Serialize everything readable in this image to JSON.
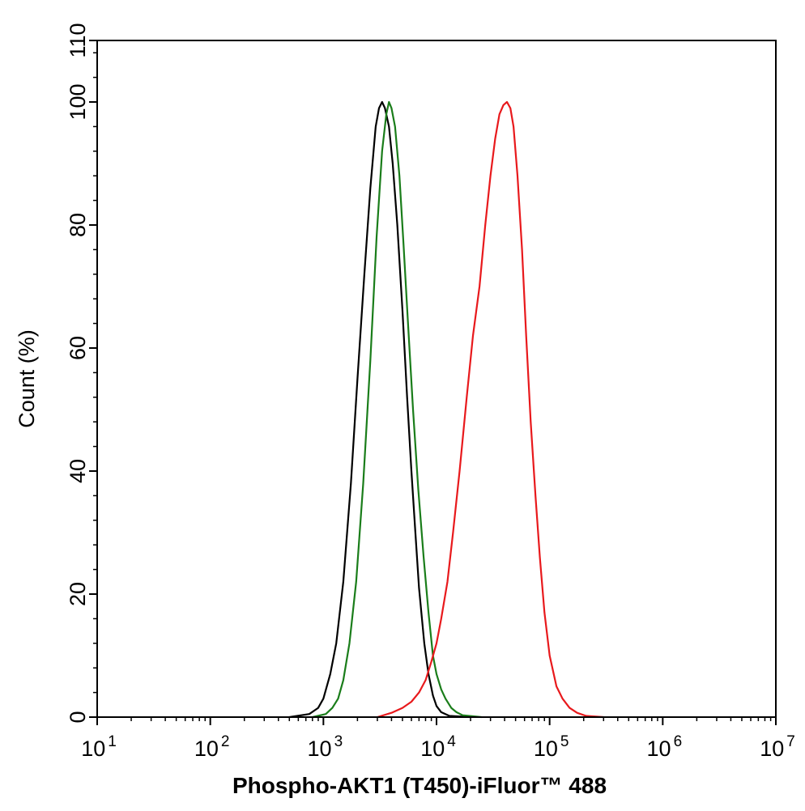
{
  "chart_data": {
    "type": "line",
    "title": "",
    "xlabel": "Phospho-AKT1 (T450)-iFluor™ 488",
    "ylabel": "Count  (%)",
    "x_scale": "log",
    "xlim": [
      10,
      10000000
    ],
    "ylim": [
      0,
      110
    ],
    "x_ticks": [
      {
        "base": "10",
        "exp": "1"
      },
      {
        "base": "10",
        "exp": "2"
      },
      {
        "base": "10",
        "exp": "3"
      },
      {
        "base": "10",
        "exp": "4"
      },
      {
        "base": "10",
        "exp": "5"
      },
      {
        "base": "10",
        "exp": "6"
      },
      {
        "base": "10",
        "exp": "7"
      }
    ],
    "y_ticks": [
      "0",
      "20",
      "40",
      "60",
      "80",
      "100",
      "110"
    ],
    "grid": false,
    "legend": "none",
    "series": [
      {
        "color": "#000000",
        "x": [
          500,
          750,
          900,
          1000,
          1150,
          1300,
          1500,
          1750,
          2000,
          2300,
          2600,
          2900,
          3100,
          3300,
          3500,
          3800,
          4100,
          4500,
          5000,
          5500,
          6000,
          6500,
          7000,
          7800,
          8500,
          9300,
          10000,
          11000,
          13000,
          20000
        ],
        "y": [
          0,
          0.5,
          1.5,
          3,
          7,
          12,
          22,
          38,
          55,
          72,
          86,
          96,
          99,
          100,
          99,
          96,
          90,
          80,
          66,
          52,
          40,
          30,
          21,
          12,
          7,
          3.5,
          1.8,
          0.8,
          0.2,
          0
        ]
      },
      {
        "color": "#1a7d1a",
        "x": [
          800,
          1050,
          1200,
          1350,
          1500,
          1700,
          1950,
          2250,
          2600,
          2950,
          3300,
          3600,
          3800,
          4000,
          4300,
          4700,
          5100,
          5600,
          6200,
          6900,
          7700,
          8500,
          9300,
          10000,
          11000,
          12000,
          13500,
          15000,
          17000,
          25000
        ],
        "y": [
          0,
          0.5,
          1.5,
          3,
          6,
          12,
          22,
          38,
          58,
          78,
          92,
          98,
          100,
          99,
          96,
          88,
          77,
          64,
          50,
          37,
          26,
          17,
          10,
          7,
          4.5,
          3,
          1.5,
          0.8,
          0.3,
          0
        ]
      },
      {
        "color": "#e8191c",
        "x": [
          3000,
          4000,
          5000,
          6000,
          7000,
          8000,
          9000,
          10000,
          11000,
          12500,
          14000,
          16000,
          18500,
          21000,
          24000,
          27000,
          30000,
          33000,
          36000,
          39000,
          42000,
          45000,
          48000,
          52000,
          57000,
          62000,
          68000,
          75000,
          82000,
          90000,
          100000,
          115000,
          130000,
          150000,
          175000,
          210000,
          300000
        ],
        "y": [
          0,
          0.7,
          1.5,
          2.5,
          4,
          6,
          9,
          12,
          16,
          22,
          30,
          40,
          52,
          62,
          70,
          80,
          88,
          94,
          98,
          99.5,
          100,
          99,
          96,
          88,
          76,
          62,
          48,
          36,
          26,
          17,
          10,
          5,
          3,
          1.5,
          0.7,
          0.2,
          0
        ]
      }
    ]
  }
}
